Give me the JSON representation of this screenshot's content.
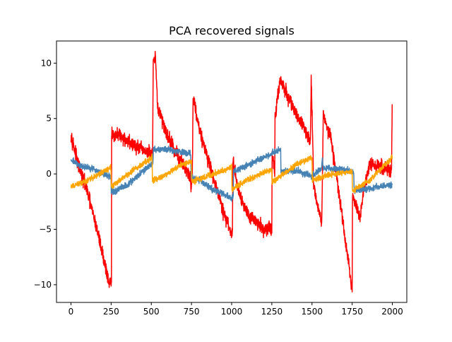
{
  "chart_data": {
    "type": "line",
    "title": "PCA recovered signals",
    "xlabel": "",
    "ylabel": "",
    "xlim": [
      -90,
      2090
    ],
    "ylim": [
      -11.6,
      12.0
    ],
    "x_ticks": [
      0,
      250,
      500,
      750,
      1000,
      1250,
      1500,
      1750,
      2000
    ],
    "y_ticks": [
      -10,
      -5,
      0,
      5,
      10
    ],
    "grid": false,
    "legend": "none",
    "n_samples": 2000,
    "series": [
      {
        "color": "#ff0000",
        "noise": 0.45,
        "values": [
          [
            0,
            3.6
          ],
          [
            10,
            3.0
          ],
          [
            40,
            1.0
          ],
          [
            100,
            -1.5
          ],
          [
            170,
            -5.5
          ],
          [
            240,
            -10.0
          ],
          [
            252,
            -9.8
          ],
          [
            253,
            3.5
          ],
          [
            300,
            3.5
          ],
          [
            400,
            2.5
          ],
          [
            500,
            1.8
          ],
          [
            508,
            1.5
          ],
          [
            512,
            10.0
          ],
          [
            525,
            10.5
          ],
          [
            540,
            6.0
          ],
          [
            600,
            3.5
          ],
          [
            650,
            2.0
          ],
          [
            735,
            0.0
          ],
          [
            745,
            -0.2
          ],
          [
            746,
            -1.5
          ],
          [
            755,
            -0.5
          ],
          [
            760,
            7.0
          ],
          [
            800,
            4.0
          ],
          [
            860,
            1.0
          ],
          [
            950,
            -3.5
          ],
          [
            1000,
            -5.5
          ],
          [
            1005,
            -5.0
          ],
          [
            1008,
            1.2
          ],
          [
            1050,
            -2.0
          ],
          [
            1100,
            -3.5
          ],
          [
            1200,
            -5.0
          ],
          [
            1250,
            -5.0
          ],
          [
            1252,
            2.0
          ],
          [
            1268,
            0.0
          ],
          [
            1270,
            5.0
          ],
          [
            1300,
            8.5
          ],
          [
            1400,
            5.5
          ],
          [
            1490,
            3.0
          ],
          [
            1495,
            8.5
          ],
          [
            1505,
            3.0
          ],
          [
            1510,
            -1.0
          ],
          [
            1560,
            -4.5
          ],
          [
            1565,
            -0.5
          ],
          [
            1570,
            5.5
          ],
          [
            1620,
            3.0
          ],
          [
            1680,
            -3.0
          ],
          [
            1745,
            -10.0
          ],
          [
            1750,
            -10.2
          ],
          [
            1752,
            -2.0
          ],
          [
            1800,
            -4.0
          ],
          [
            1820,
            -1.5
          ],
          [
            1860,
            1.0
          ],
          [
            1990,
            0.2
          ],
          [
            1995,
            0.0
          ],
          [
            2000,
            7.5
          ]
        ]
      },
      {
        "color": "#4682b4",
        "noise": 0.2,
        "values": [
          [
            0,
            1.3
          ],
          [
            60,
            0.7
          ],
          [
            130,
            0.5
          ],
          [
            249,
            -0.3
          ],
          [
            251,
            -1.7
          ],
          [
            350,
            -1.0
          ],
          [
            510,
            1.0
          ],
          [
            512,
            2.2
          ],
          [
            600,
            2.2
          ],
          [
            745,
            1.8
          ],
          [
            748,
            -0.3
          ],
          [
            800,
            -0.6
          ],
          [
            900,
            -1.5
          ],
          [
            1000,
            -2.2
          ],
          [
            1010,
            -1.9
          ],
          [
            1012,
            0.2
          ],
          [
            1100,
            0.8
          ],
          [
            1300,
            2.2
          ],
          [
            1305,
            2.0
          ],
          [
            1307,
            0.2
          ],
          [
            1400,
            0.3
          ],
          [
            1500,
            -0.2
          ],
          [
            1560,
            0.5
          ],
          [
            1565,
            1.5
          ],
          [
            1570,
            0.5
          ],
          [
            1600,
            0.5
          ],
          [
            1700,
            0.4
          ],
          [
            1750,
            0.2
          ],
          [
            1760,
            0.0
          ],
          [
            1762,
            -1.5
          ],
          [
            1850,
            -1.3
          ],
          [
            2000,
            -1.0
          ]
        ]
      },
      {
        "color": "#ffa500",
        "noise": 0.18,
        "values": [
          [
            0,
            -1.2
          ],
          [
            100,
            -0.6
          ],
          [
            249,
            0.6
          ],
          [
            251,
            -1.2
          ],
          [
            380,
            0.3
          ],
          [
            505,
            1.5
          ],
          [
            507,
            -0.6
          ],
          [
            560,
            -0.3
          ],
          [
            680,
            0.8
          ],
          [
            750,
            1.1
          ],
          [
            752,
            -0.7
          ],
          [
            850,
            -0.2
          ],
          [
            1000,
            0.6
          ],
          [
            1002,
            -1.4
          ],
          [
            1100,
            -0.5
          ],
          [
            1250,
            0.4
          ],
          [
            1252,
            -0.8
          ],
          [
            1400,
            0.8
          ],
          [
            1500,
            1.5
          ],
          [
            1502,
            -0.6
          ],
          [
            1600,
            -0.1
          ],
          [
            1750,
            0.2
          ],
          [
            1752,
            -1.5
          ],
          [
            1850,
            -0.7
          ],
          [
            2000,
            1.5
          ]
        ]
      }
    ]
  }
}
